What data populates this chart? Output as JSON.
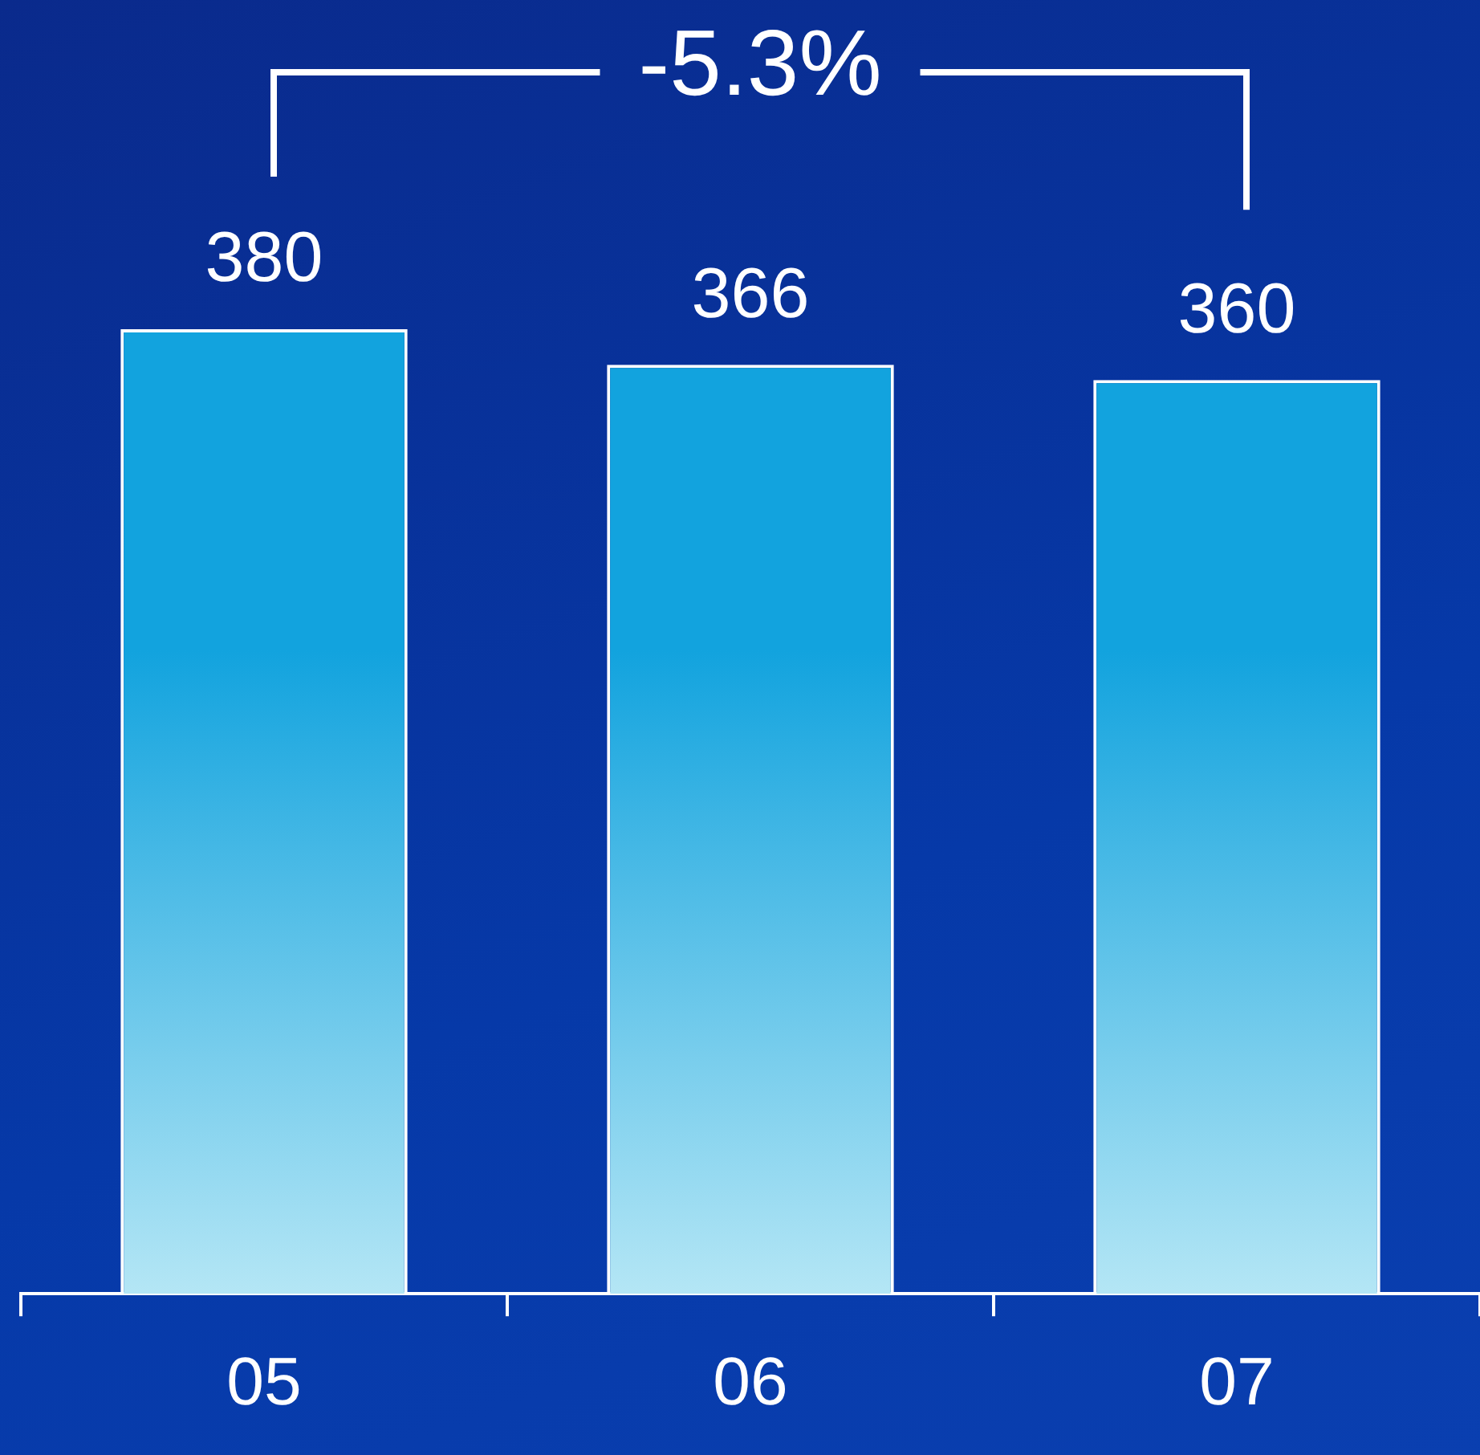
{
  "chart_data": {
    "type": "bar",
    "categories": [
      "05",
      "06",
      "07"
    ],
    "values": [
      380,
      366,
      360
    ],
    "color": "#12a3de",
    "data_labels": true,
    "grid": false,
    "legend": false,
    "tick_labels": "x",
    "annotations": [
      "-5.3%"
    ]
  }
}
